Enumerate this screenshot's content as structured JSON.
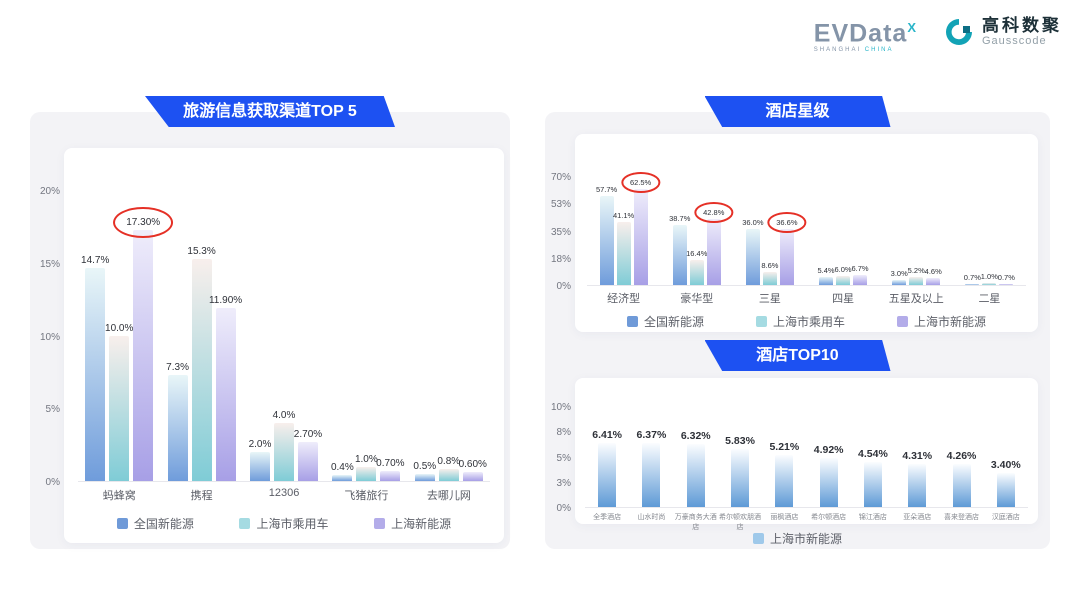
{
  "header": {
    "evdata": {
      "text": "EVData",
      "sup": "X",
      "subtext_left": "SHANGHAI",
      "subtext_right": "CHINA"
    },
    "gausscode": {
      "cn": "高科数聚",
      "en": "Gausscode"
    }
  },
  "colors": {
    "banner_blue": "#1d51f2",
    "circle_red": "#e53026",
    "panel_bg": "#f3f3f6",
    "brand_teal": "#2ab5c9",
    "logo_gray": "#8494a8"
  },
  "chart_data": [
    {
      "type": "bar",
      "title": "旅游信息获取渠道TOP 5",
      "categories": [
        "蚂蜂窝",
        "携程",
        "12306",
        "飞猪旅行",
        "去哪儿网"
      ],
      "yticks": [
        "20%",
        "15%",
        "10%",
        "5%",
        "0%"
      ],
      "ymax": 20,
      "legend_position": "bottom",
      "grid": false,
      "series": [
        {
          "name": "全国新能源",
          "color": "#6f9ad8",
          "gradient": [
            "#e9f6f8",
            "#6f9cdb"
          ],
          "values": [
            14.7,
            7.3,
            2.0,
            0.4,
            0.5
          ],
          "labels": [
            "14.7%",
            "7.3%",
            "2.0%",
            "0.4%",
            "0.5%"
          ],
          "circled": []
        },
        {
          "name": "上海市乘用车",
          "color": "#a5dbe2",
          "gradient": [
            "#f8efec",
            "#7fccd6"
          ],
          "values": [
            10.0,
            15.3,
            4.0,
            1.0,
            0.8
          ],
          "labels": [
            "10.0%",
            "15.3%",
            "4.0%",
            "1.0%",
            "0.8%"
          ],
          "circled": []
        },
        {
          "name": "上海新能源",
          "color": "#b3ace9",
          "gradient": [
            "#efedfb",
            "#a79fe6"
          ],
          "values": [
            17.3,
            11.9,
            2.7,
            0.7,
            0.6
          ],
          "labels": [
            "17.30%",
            "11.90%",
            "2.70%",
            "0.70%",
            "0.60%"
          ],
          "circled": [
            0
          ]
        }
      ]
    },
    {
      "type": "bar",
      "title": "酒店星级",
      "categories": [
        "经济型",
        "豪华型",
        "三星",
        "四星",
        "五星及以上",
        "二星"
      ],
      "yticks": [
        "70%",
        "53%",
        "35%",
        "18%",
        "0%"
      ],
      "ymax": 70,
      "legend_position": "bottom",
      "grid": false,
      "series": [
        {
          "name": "全国新能源",
          "color": "#6f9ad8",
          "gradient": [
            "#e9f6f8",
            "#6f9cdb"
          ],
          "values": [
            57.7,
            38.7,
            36.0,
            5.4,
            3.0,
            0.7
          ],
          "labels": [
            "57.7%",
            "38.7%",
            "36.0%",
            "5.4%",
            "3.0%",
            "0.7%"
          ],
          "circled": []
        },
        {
          "name": "上海市乘用车",
          "color": "#a5dbe2",
          "gradient": [
            "#f8efec",
            "#7fccd6"
          ],
          "values": [
            41.1,
            16.4,
            8.6,
            6.0,
            5.2,
            1.0
          ],
          "labels": [
            "41.1%",
            "16.4%",
            "8.6%",
            "6.0%",
            "5.2%",
            "1.0%"
          ],
          "circled": []
        },
        {
          "name": "上海市新能源",
          "color": "#b3ace9",
          "gradient": [
            "#efedfb",
            "#a79fe6"
          ],
          "values": [
            62.5,
            42.8,
            36.6,
            6.7,
            4.6,
            0.7
          ],
          "labels": [
            "62.5%",
            "42.8%",
            "36.6%",
            "6.7%",
            "4.6%",
            "0.7%"
          ],
          "circled": [
            0,
            1,
            2
          ]
        }
      ]
    },
    {
      "type": "bar",
      "title": "酒店TOP10",
      "categories": [
        "全季酒店",
        "山水时尚",
        "万豪商务大酒店",
        "希尔顿欢朋酒店",
        "丽枫酒店",
        "希尔顿酒店",
        "锦江酒店",
        "亚朵酒店",
        "喜来登酒店",
        "汉庭酒店"
      ],
      "yticks": [
        "10%",
        "8%",
        "5%",
        "3%",
        "0%"
      ],
      "ymax": 10,
      "legend_position": "bottom",
      "grid": false,
      "series": [
        {
          "name": "上海市新能源",
          "color": "#9fc9ea",
          "gradient": [
            "#fbfdff",
            "#5e9ad6"
          ],
          "values": [
            6.41,
            6.37,
            6.32,
            5.83,
            5.21,
            4.92,
            4.54,
            4.31,
            4.26,
            3.4
          ],
          "labels": [
            "6.41%",
            "6.37%",
            "6.32%",
            "5.83%",
            "5.21%",
            "4.92%",
            "4.54%",
            "4.31%",
            "4.26%",
            "3.40%"
          ],
          "circled": []
        }
      ]
    }
  ]
}
